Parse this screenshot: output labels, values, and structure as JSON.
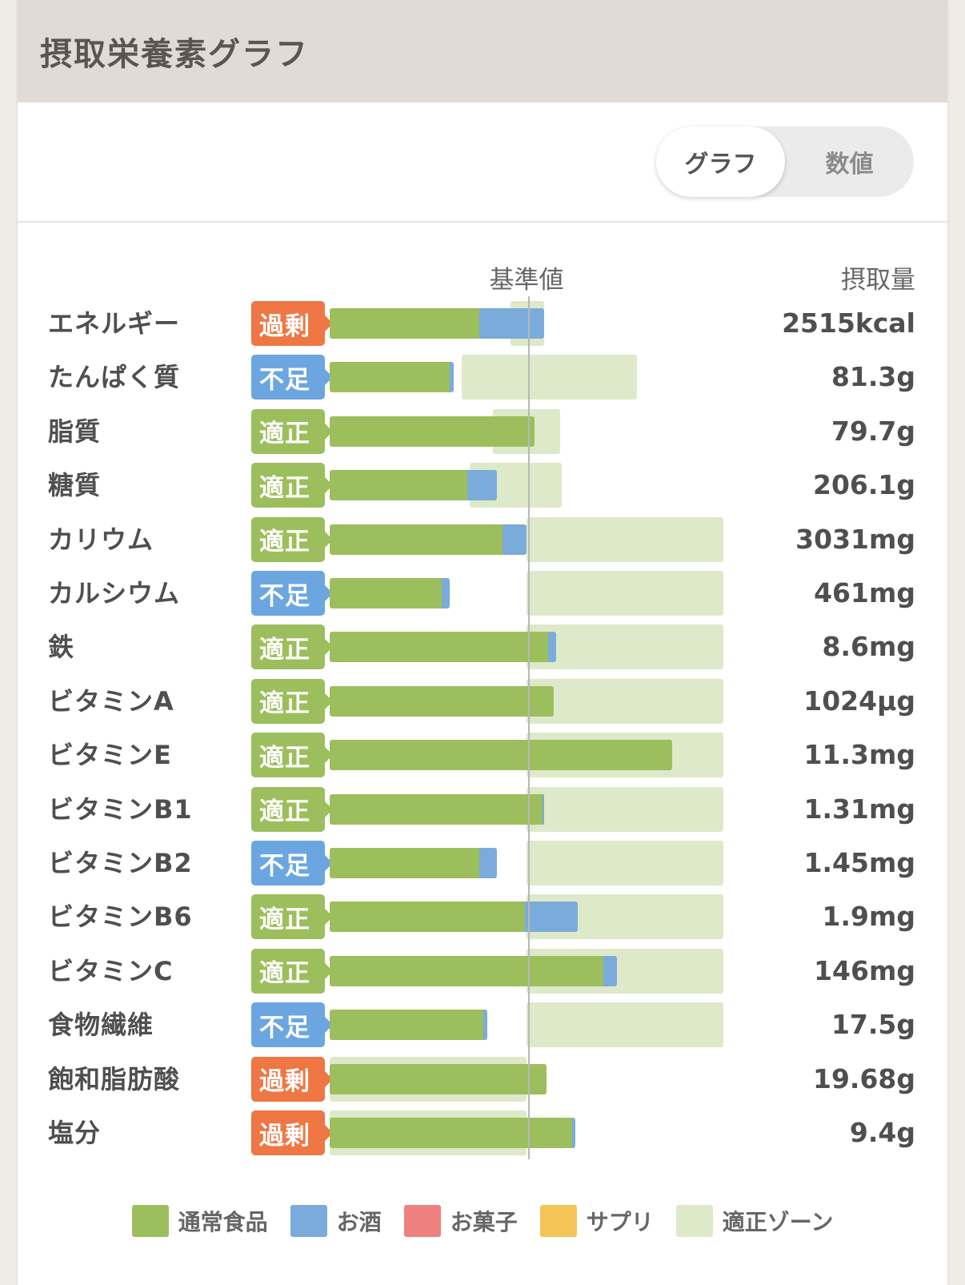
{
  "header": {
    "title": "摂取栄養素グラフ"
  },
  "view_toggle": {
    "graph_label": "グラフ",
    "numeric_label": "数値",
    "selected": "グラフ"
  },
  "chart_data": {
    "type": "bar",
    "baseline_label": "基準値",
    "amount_label": "摂取量",
    "colors": {
      "food": "#9dbe5c",
      "alcohol": "#7aabdb",
      "sweets": "#ee8080",
      "supplement": "#f4c455",
      "zone": "#dde9c9",
      "excess": "#ee7744",
      "lacking": "#6ba6e0",
      "proper": "#9dbe5c"
    },
    "legend": [
      "通常食品",
      "お酒",
      "お菓子",
      "サプリ",
      "適正ゾーン"
    ],
    "rows": [
      {
        "name": "エネルギー",
        "status": "過剰",
        "food_pct": 76,
        "alcohol_pct": 33,
        "zone": [
          92,
          109
        ],
        "value": "2515kcal"
      },
      {
        "name": "たんぱく質",
        "status": "不足",
        "food_pct": 61,
        "alcohol_pct": 2,
        "zone": [
          67,
          156
        ],
        "value": "81.3g"
      },
      {
        "name": "脂質",
        "status": "適正",
        "food_pct": 104,
        "alcohol_pct": 0,
        "zone": [
          83,
          117
        ],
        "value": "79.7g"
      },
      {
        "name": "糖質",
        "status": "適正",
        "food_pct": 70,
        "alcohol_pct": 15,
        "zone": [
          71,
          118
        ],
        "value": "206.1g"
      },
      {
        "name": "カリウム",
        "status": "適正",
        "food_pct": 88,
        "alcohol_pct": 12,
        "zone": [
          100,
          200
        ],
        "value": "3031mg"
      },
      {
        "name": "カルシウム",
        "status": "不足",
        "food_pct": 57,
        "alcohol_pct": 4,
        "zone": [
          100,
          200
        ],
        "value": "461mg"
      },
      {
        "name": "鉄",
        "status": "適正",
        "food_pct": 111,
        "alcohol_pct": 4,
        "zone": [
          100,
          200
        ],
        "value": "8.6mg"
      },
      {
        "name": "ビタミンA",
        "status": "適正",
        "food_pct": 114,
        "alcohol_pct": 0,
        "zone": [
          100,
          200
        ],
        "value": "1024μg"
      },
      {
        "name": "ビタミンE",
        "status": "適正",
        "food_pct": 174,
        "alcohol_pct": 0,
        "zone": [
          100,
          200
        ],
        "value": "11.3mg"
      },
      {
        "name": "ビタミンB1",
        "status": "適正",
        "food_pct": 108,
        "alcohol_pct": 1,
        "zone": [
          100,
          200
        ],
        "value": "1.31mg"
      },
      {
        "name": "ビタミンB2",
        "status": "不足",
        "food_pct": 76,
        "alcohol_pct": 9,
        "zone": [
          100,
          200
        ],
        "value": "1.45mg"
      },
      {
        "name": "ビタミンB6",
        "status": "適正",
        "food_pct": 99,
        "alcohol_pct": 27,
        "zone": [
          100,
          200
        ],
        "value": "1.9mg"
      },
      {
        "name": "ビタミンC",
        "status": "適正",
        "food_pct": 139,
        "alcohol_pct": 7,
        "zone": [
          100,
          200
        ],
        "value": "146mg"
      },
      {
        "name": "食物繊維",
        "status": "不足",
        "food_pct": 78,
        "alcohol_pct": 2,
        "zone": [
          100,
          200
        ],
        "value": "17.5g"
      },
      {
        "name": "飽和脂肪酸",
        "status": "過剰",
        "food_pct": 110,
        "alcohol_pct": 0,
        "zone": [
          0,
          100
        ],
        "value": "19.68g"
      },
      {
        "name": "塩分",
        "status": "過剰",
        "food_pct": 123,
        "alcohol_pct": 2,
        "zone": [
          0,
          100
        ],
        "value": "9.4g"
      }
    ]
  }
}
